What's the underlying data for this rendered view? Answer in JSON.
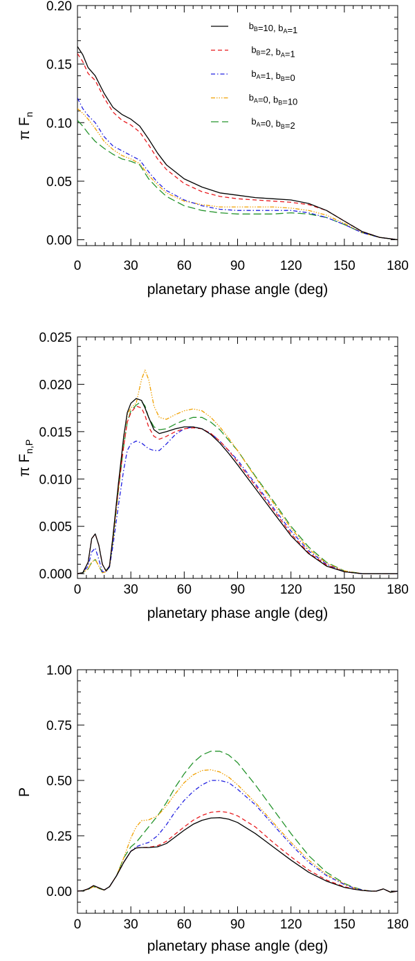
{
  "chart_data": [
    {
      "id": "flux",
      "type": "line",
      "xlabel": "planetary phase angle (deg)",
      "ylabel_main": "π F",
      "ylabel_sub": "n",
      "xlim": [
        0,
        180
      ],
      "ylim": [
        -0.005,
        0.2
      ],
      "xticks": [
        0,
        30,
        60,
        90,
        120,
        150,
        180
      ],
      "xtick_labels": [
        "0",
        "30",
        "60",
        "90",
        "120",
        "150",
        "180"
      ],
      "yticks": [
        0.0,
        0.05,
        0.1,
        0.15,
        0.2
      ],
      "ytick_labels": [
        "0.00",
        "0.05",
        "0.10",
        "0.15",
        "0.20"
      ],
      "legend_position": "top-right",
      "x": [
        0,
        3,
        6,
        10,
        15,
        20,
        25,
        30,
        35,
        40,
        45,
        50,
        60,
        70,
        80,
        90,
        100,
        110,
        120,
        130,
        140,
        150,
        160,
        170,
        175,
        180
      ],
      "series": [
        {
          "key": "s1",
          "values": [
            0.165,
            0.158,
            0.147,
            0.14,
            0.125,
            0.113,
            0.107,
            0.103,
            0.097,
            0.086,
            0.074,
            0.064,
            0.052,
            0.045,
            0.04,
            0.038,
            0.036,
            0.035,
            0.034,
            0.031,
            0.025,
            0.016,
            0.007,
            0.002,
            0.001,
            0.0
          ]
        },
        {
          "key": "s2",
          "values": [
            0.159,
            0.152,
            0.142,
            0.136,
            0.121,
            0.109,
            0.102,
            0.098,
            0.092,
            0.081,
            0.069,
            0.06,
            0.048,
            0.041,
            0.037,
            0.035,
            0.034,
            0.033,
            0.032,
            0.03,
            0.025,
            0.016,
            0.007,
            0.002,
            0.001,
            0.0
          ]
        },
        {
          "key": "s3",
          "values": [
            0.121,
            0.112,
            0.106,
            0.1,
            0.088,
            0.08,
            0.076,
            0.072,
            0.068,
            0.058,
            0.049,
            0.042,
            0.034,
            0.029,
            0.026,
            0.025,
            0.025,
            0.025,
            0.025,
            0.023,
            0.019,
            0.013,
            0.006,
            0.002,
            0.001,
            0.0
          ]
        },
        {
          "key": "s4",
          "values": [
            0.112,
            0.108,
            0.103,
            0.095,
            0.084,
            0.077,
            0.072,
            0.069,
            0.065,
            0.055,
            0.047,
            0.04,
            0.033,
            0.03,
            0.028,
            0.028,
            0.028,
            0.028,
            0.027,
            0.025,
            0.021,
            0.014,
            0.006,
            0.002,
            0.001,
            0.0
          ]
        },
        {
          "key": "s5",
          "values": [
            0.102,
            0.097,
            0.091,
            0.084,
            0.078,
            0.073,
            0.069,
            0.067,
            0.064,
            0.052,
            0.044,
            0.037,
            0.029,
            0.025,
            0.023,
            0.022,
            0.022,
            0.022,
            0.023,
            0.022,
            0.019,
            0.013,
            0.006,
            0.002,
            0.001,
            0.0
          ]
        }
      ]
    },
    {
      "id": "polarized",
      "type": "line",
      "xlabel": "planetary phase angle (deg)",
      "ylabel_main": "π F",
      "ylabel_sub": "n,P",
      "xlim": [
        0,
        180
      ],
      "ylim": [
        -0.0005,
        0.025
      ],
      "xticks": [
        0,
        30,
        60,
        90,
        120,
        150,
        180
      ],
      "xtick_labels": [
        "0",
        "30",
        "60",
        "90",
        "120",
        "150",
        "180"
      ],
      "yticks": [
        0.0,
        0.005,
        0.01,
        0.015,
        0.02,
        0.025
      ],
      "ytick_labels": [
        "0.000",
        "0.005",
        "0.010",
        "0.015",
        "0.020",
        "0.025"
      ],
      "x": [
        0,
        3,
        6,
        8,
        10,
        12,
        14,
        16,
        18,
        20,
        23,
        26,
        28,
        30,
        33,
        36,
        38,
        40,
        43,
        46,
        50,
        55,
        60,
        65,
        70,
        75,
        80,
        85,
        90,
        100,
        110,
        120,
        130,
        140,
        150,
        160,
        170,
        180
      ],
      "series": [
        {
          "key": "s1",
          "values": [
            0.0,
            0.0001,
            0.0012,
            0.0037,
            0.0042,
            0.003,
            0.001,
            0.0003,
            0.0008,
            0.004,
            0.0095,
            0.0145,
            0.017,
            0.018,
            0.0185,
            0.0183,
            0.0175,
            0.0165,
            0.0152,
            0.0148,
            0.015,
            0.0153,
            0.0155,
            0.0155,
            0.0153,
            0.0147,
            0.0138,
            0.0127,
            0.0115,
            0.009,
            0.0065,
            0.004,
            0.0021,
            0.0008,
            0.0002,
            0.0,
            0.0,
            0.0
          ]
        },
        {
          "key": "s2",
          "values": [
            0.0,
            0.0001,
            0.0012,
            0.0037,
            0.0042,
            0.003,
            0.001,
            0.0003,
            0.0008,
            0.004,
            0.009,
            0.0135,
            0.016,
            0.017,
            0.0177,
            0.0175,
            0.0167,
            0.0155,
            0.0145,
            0.0142,
            0.0145,
            0.015,
            0.0153,
            0.0154,
            0.0153,
            0.0148,
            0.014,
            0.013,
            0.0118,
            0.0093,
            0.0068,
            0.0042,
            0.0022,
            0.0009,
            0.0002,
            0.0,
            0.0,
            0.0
          ]
        },
        {
          "key": "s3",
          "values": [
            0.0,
            0.0001,
            0.0008,
            0.0023,
            0.0027,
            0.0015,
            0.0002,
            0.0002,
            0.0007,
            0.003,
            0.0072,
            0.011,
            0.013,
            0.0137,
            0.014,
            0.0138,
            0.0135,
            0.0132,
            0.013,
            0.013,
            0.0137,
            0.0147,
            0.0153,
            0.0155,
            0.0153,
            0.0148,
            0.014,
            0.013,
            0.012,
            0.0095,
            0.007,
            0.0045,
            0.0024,
            0.001,
            0.0002,
            0.0,
            0.0,
            0.0
          ]
        },
        {
          "key": "s4",
          "values": [
            0.0,
            0.0001,
            0.0005,
            0.0012,
            0.0015,
            0.0008,
            0.0001,
            0.0002,
            0.0007,
            0.0035,
            0.009,
            0.0145,
            0.0168,
            0.0175,
            0.018,
            0.0205,
            0.0215,
            0.0205,
            0.0177,
            0.0165,
            0.0163,
            0.0168,
            0.0172,
            0.0174,
            0.0172,
            0.0165,
            0.0155,
            0.0143,
            0.013,
            0.0102,
            0.0075,
            0.0048,
            0.0026,
            0.0011,
            0.0003,
            0.0,
            0.0,
            0.0
          ]
        },
        {
          "key": "s5",
          "values": [
            0.0,
            0.0001,
            0.0005,
            0.0012,
            0.0015,
            0.0008,
            0.0001,
            0.0002,
            0.0007,
            0.0035,
            0.0088,
            0.0135,
            0.016,
            0.0172,
            0.0178,
            0.0182,
            0.0177,
            0.0165,
            0.0155,
            0.0152,
            0.0153,
            0.0158,
            0.0162,
            0.0165,
            0.0165,
            0.016,
            0.0152,
            0.0141,
            0.013,
            0.0103,
            0.0077,
            0.005,
            0.0028,
            0.0012,
            0.0003,
            0.0,
            0.0,
            0.0
          ]
        }
      ]
    },
    {
      "id": "degree",
      "type": "line",
      "xlabel": "planetary phase angle (deg)",
      "ylabel_main": "P",
      "ylabel_sub": "",
      "xlim": [
        0,
        180
      ],
      "ylim": [
        -0.1,
        1.0
      ],
      "xticks": [
        0,
        30,
        60,
        90,
        120,
        150,
        180
      ],
      "xtick_labels": [
        "0",
        "30",
        "60",
        "90",
        "120",
        "150",
        "180"
      ],
      "yticks": [
        0.0,
        0.25,
        0.5,
        0.75,
        1.0
      ],
      "ytick_labels": [
        "0.00",
        "0.25",
        "0.50",
        "0.75",
        "1.00"
      ],
      "x": [
        0,
        3,
        6,
        9,
        12,
        15,
        18,
        22,
        26,
        30,
        33,
        36,
        40,
        45,
        50,
        55,
        60,
        65,
        70,
        75,
        80,
        85,
        90,
        100,
        110,
        120,
        130,
        140,
        150,
        155,
        160,
        165,
        168,
        172,
        176,
        180
      ],
      "series": [
        {
          "key": "s1",
          "values": [
            0.0,
            0.002,
            0.01,
            0.025,
            0.015,
            0.005,
            0.02,
            0.07,
            0.13,
            0.18,
            0.195,
            0.197,
            0.197,
            0.2,
            0.215,
            0.245,
            0.275,
            0.302,
            0.32,
            0.33,
            0.332,
            0.325,
            0.31,
            0.26,
            0.2,
            0.14,
            0.085,
            0.045,
            0.017,
            0.009,
            0.003,
            0.0,
            0.0,
            0.01,
            -0.005,
            0.0
          ]
        },
        {
          "key": "s2",
          "values": [
            0.0,
            0.002,
            0.01,
            0.025,
            0.015,
            0.005,
            0.02,
            0.07,
            0.13,
            0.18,
            0.195,
            0.197,
            0.198,
            0.205,
            0.225,
            0.258,
            0.29,
            0.32,
            0.342,
            0.356,
            0.36,
            0.355,
            0.34,
            0.29,
            0.22,
            0.155,
            0.095,
            0.05,
            0.02,
            0.01,
            0.003,
            0.0,
            0.0,
            0.01,
            -0.005,
            0.0
          ]
        },
        {
          "key": "s3",
          "values": [
            0.0,
            0.002,
            0.01,
            0.025,
            0.015,
            0.005,
            0.02,
            0.07,
            0.13,
            0.18,
            0.2,
            0.21,
            0.22,
            0.25,
            0.3,
            0.36,
            0.41,
            0.45,
            0.48,
            0.5,
            0.5,
            0.49,
            0.46,
            0.39,
            0.3,
            0.21,
            0.13,
            0.07,
            0.03,
            0.015,
            0.005,
            0.0,
            0.0,
            0.01,
            -0.005,
            0.0
          ]
        },
        {
          "key": "s4",
          "values": [
            0.0,
            0.002,
            0.008,
            0.02,
            0.012,
            0.005,
            0.02,
            0.07,
            0.15,
            0.24,
            0.29,
            0.318,
            0.322,
            0.34,
            0.385,
            0.44,
            0.49,
            0.525,
            0.545,
            0.548,
            0.538,
            0.515,
            0.48,
            0.4,
            0.31,
            0.22,
            0.14,
            0.075,
            0.032,
            0.016,
            0.005,
            0.0,
            0.0,
            0.01,
            -0.005,
            0.0
          ]
        },
        {
          "key": "s5",
          "values": [
            0.0,
            0.002,
            0.008,
            0.02,
            0.012,
            0.005,
            0.02,
            0.07,
            0.15,
            0.2,
            0.22,
            0.25,
            0.29,
            0.34,
            0.4,
            0.47,
            0.53,
            0.58,
            0.615,
            0.632,
            0.632,
            0.615,
            0.58,
            0.48,
            0.37,
            0.26,
            0.16,
            0.085,
            0.035,
            0.018,
            0.006,
            0.0,
            0.0,
            0.01,
            -0.005,
            0.0
          ]
        }
      ]
    }
  ],
  "legend": [
    {
      "key": "s1",
      "color": "#000000",
      "dash": "",
      "label_parts": [
        [
          "b",
          false
        ],
        [
          "B",
          true
        ],
        [
          "=10, ",
          false
        ],
        [
          "b",
          false
        ],
        [
          "A",
          true
        ],
        [
          "=1",
          false
        ]
      ]
    },
    {
      "key": "s2",
      "color": "#e8191d",
      "dash": "6,4",
      "label_parts": [
        [
          "b",
          false
        ],
        [
          "B",
          true
        ],
        [
          "=2, ",
          false
        ],
        [
          "b",
          false
        ],
        [
          "A",
          true
        ],
        [
          "=1",
          false
        ]
      ]
    },
    {
      "key": "s3",
      "color": "#1f1ee0",
      "dash": "6,3,1.5,3",
      "label_parts": [
        [
          "b",
          false
        ],
        [
          "A",
          true
        ],
        [
          "=1, ",
          false
        ],
        [
          "b",
          false
        ],
        [
          "B",
          true
        ],
        [
          "=0",
          false
        ]
      ]
    },
    {
      "key": "s4",
      "color": "#f0a000",
      "dash": "6,2,1.5,2,1.5,2,1.5,2",
      "label_parts": [
        [
          "b",
          false
        ],
        [
          "A",
          true
        ],
        [
          "=0, ",
          false
        ],
        [
          "b",
          false
        ],
        [
          "B",
          true
        ],
        [
          "=10",
          false
        ]
      ]
    },
    {
      "key": "s5",
      "color": "#23932a",
      "dash": "11,5",
      "label_parts": [
        [
          "b",
          false
        ],
        [
          "A",
          true
        ],
        [
          "=0, ",
          false
        ],
        [
          "b",
          false
        ],
        [
          "B",
          true
        ],
        [
          "=2",
          false
        ]
      ]
    }
  ]
}
